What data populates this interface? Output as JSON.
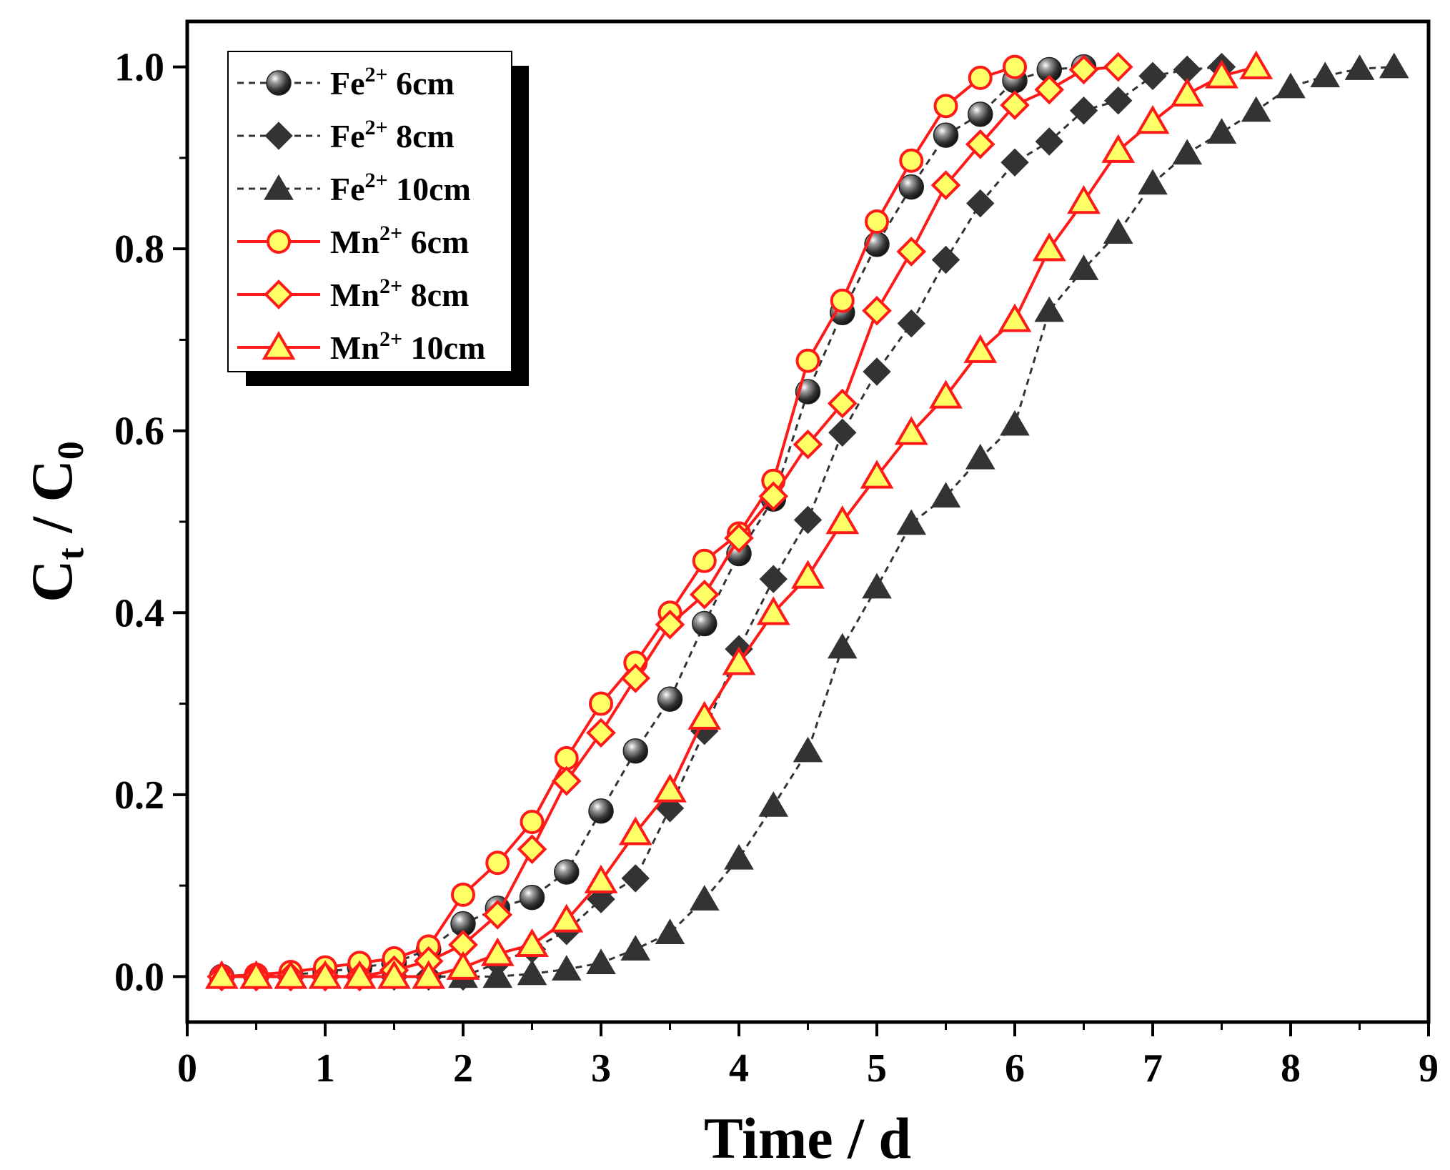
{
  "chart_data": {
    "type": "line",
    "title": "",
    "xlabel": "Time / d",
    "ylabel_parts": {
      "c": "C",
      "t": "t",
      "sep": " / ",
      "zero": "0"
    },
    "xlim": [
      0,
      9
    ],
    "ylim": [
      -0.05,
      1.05
    ],
    "xticks": [
      0,
      1,
      2,
      3,
      4,
      5,
      6,
      7,
      8,
      9
    ],
    "xtick_labels": [
      "0",
      "1",
      "2",
      "3",
      "4",
      "5",
      "6",
      "7",
      "8",
      "9"
    ],
    "yticks": [
      0.0,
      0.2,
      0.4,
      0.6,
      0.8,
      1.0
    ],
    "ytick_labels": [
      "0.0",
      "0.2",
      "0.4",
      "0.6",
      "0.8",
      "1.0"
    ],
    "grid": false,
    "legend_position": "top-left",
    "colors": {
      "fe_line": "#333333",
      "fe_marker": "#333333",
      "mn_line": "#ff1a1a",
      "mn_fill": "#ffff66"
    },
    "series": [
      {
        "name": "Fe2+ 6cm",
        "ion": "Fe",
        "sup": "2+",
        "depth": "6cm",
        "marker": "sphere",
        "style": "dashed",
        "x": [
          0.25,
          0.5,
          0.75,
          1.0,
          1.25,
          1.5,
          1.75,
          2.0,
          2.25,
          2.5,
          2.75,
          3.0,
          3.25,
          3.5,
          3.75,
          4.0,
          4.25,
          4.5,
          4.75,
          5.0,
          5.25,
          5.5,
          5.75,
          6.0,
          6.25,
          6.5
        ],
        "y": [
          0.0,
          0.0,
          0.002,
          0.005,
          0.01,
          0.015,
          0.03,
          0.058,
          0.075,
          0.087,
          0.115,
          0.182,
          0.248,
          0.305,
          0.388,
          0.465,
          0.525,
          0.643,
          0.73,
          0.805,
          0.868,
          0.925,
          0.948,
          0.985,
          0.997,
          1.0
        ]
      },
      {
        "name": "Fe2+ 8cm",
        "ion": "Fe",
        "sup": "2+",
        "depth": "8cm",
        "marker": "diamond",
        "style": "dashed",
        "x": [
          0.25,
          0.5,
          0.75,
          1.0,
          1.25,
          1.5,
          1.75,
          2.0,
          2.25,
          2.5,
          2.75,
          3.0,
          3.25,
          3.5,
          3.75,
          4.0,
          4.25,
          4.5,
          4.75,
          5.0,
          5.25,
          5.5,
          5.75,
          6.0,
          6.25,
          6.5,
          6.75,
          7.0,
          7.25,
          7.5
        ],
        "y": [
          0.0,
          0.0,
          0.0,
          0.0,
          0.0,
          0.0,
          0.0,
          0.0,
          0.015,
          0.03,
          0.05,
          0.085,
          0.108,
          0.185,
          0.27,
          0.36,
          0.437,
          0.502,
          0.598,
          0.665,
          0.718,
          0.788,
          0.85,
          0.895,
          0.918,
          0.952,
          0.963,
          0.99,
          0.997,
          1.0
        ]
      },
      {
        "name": "Fe2+ 10cm",
        "ion": "Fe",
        "sup": "2+",
        "depth": "10cm",
        "marker": "triangle",
        "style": "dashed",
        "x": [
          0.25,
          0.5,
          0.75,
          1.0,
          1.25,
          1.5,
          1.75,
          2.0,
          2.25,
          2.5,
          2.75,
          3.0,
          3.25,
          3.5,
          3.75,
          4.0,
          4.25,
          4.5,
          4.75,
          5.0,
          5.25,
          5.5,
          5.75,
          6.0,
          6.25,
          6.5,
          6.75,
          7.0,
          7.25,
          7.5,
          7.75,
          8.0,
          8.25,
          8.5,
          8.75
        ],
        "y": [
          0.0,
          0.0,
          0.0,
          0.0,
          0.0,
          0.0,
          0.0,
          0.0,
          0.0,
          0.003,
          0.008,
          0.015,
          0.03,
          0.048,
          0.085,
          0.13,
          0.188,
          0.248,
          0.362,
          0.428,
          0.498,
          0.528,
          0.57,
          0.607,
          0.732,
          0.778,
          0.818,
          0.872,
          0.905,
          0.928,
          0.952,
          0.978,
          0.99,
          0.998,
          1.0
        ]
      },
      {
        "name": "Mn2+ 6cm",
        "ion": "Mn",
        "sup": "2+",
        "depth": "6cm",
        "marker": "circle",
        "style": "solid",
        "x": [
          0.25,
          0.5,
          0.75,
          1.0,
          1.25,
          1.5,
          1.75,
          2.0,
          2.25,
          2.5,
          2.75,
          3.0,
          3.25,
          3.5,
          3.75,
          4.0,
          4.25,
          4.5,
          4.75,
          5.0,
          5.25,
          5.5,
          5.75,
          6.0
        ],
        "y": [
          0.0,
          0.002,
          0.005,
          0.01,
          0.015,
          0.02,
          0.033,
          0.09,
          0.125,
          0.17,
          0.24,
          0.3,
          0.345,
          0.4,
          0.457,
          0.487,
          0.545,
          0.677,
          0.743,
          0.83,
          0.897,
          0.957,
          0.988,
          1.0
        ]
      },
      {
        "name": "Mn2+ 8cm",
        "ion": "Mn",
        "sup": "2+",
        "depth": "8cm",
        "marker": "diamond",
        "style": "solid",
        "x": [
          0.25,
          0.5,
          0.75,
          1.0,
          1.25,
          1.5,
          1.75,
          2.0,
          2.25,
          2.5,
          2.75,
          3.0,
          3.25,
          3.5,
          3.75,
          4.0,
          4.25,
          4.5,
          4.75,
          5.0,
          5.25,
          5.5,
          5.75,
          6.0,
          6.25,
          6.5,
          6.75
        ],
        "y": [
          0.0,
          0.0,
          0.0,
          0.0,
          0.0,
          0.007,
          0.017,
          0.035,
          0.068,
          0.14,
          0.215,
          0.268,
          0.328,
          0.387,
          0.42,
          0.482,
          0.528,
          0.585,
          0.63,
          0.732,
          0.797,
          0.87,
          0.915,
          0.958,
          0.975,
          0.997,
          1.0
        ]
      },
      {
        "name": "Mn2+ 10cm",
        "ion": "Mn",
        "sup": "2+",
        "depth": "10cm",
        "marker": "triangle",
        "style": "solid",
        "x": [
          0.25,
          0.5,
          0.75,
          1.0,
          1.25,
          1.5,
          1.75,
          2.0,
          2.25,
          2.5,
          2.75,
          3.0,
          3.25,
          3.5,
          3.75,
          4.0,
          4.25,
          4.5,
          4.75,
          5.0,
          5.25,
          5.5,
          5.75,
          6.0,
          6.25,
          6.5,
          6.75,
          7.0,
          7.25,
          7.5,
          7.75
        ],
        "y": [
          0.0,
          0.0,
          0.0,
          0.0,
          0.0,
          0.0,
          0.0,
          0.01,
          0.025,
          0.035,
          0.062,
          0.105,
          0.158,
          0.205,
          0.285,
          0.345,
          0.4,
          0.44,
          0.5,
          0.55,
          0.598,
          0.638,
          0.688,
          0.722,
          0.8,
          0.852,
          0.908,
          0.94,
          0.97,
          0.99,
          1.0
        ]
      }
    ]
  }
}
